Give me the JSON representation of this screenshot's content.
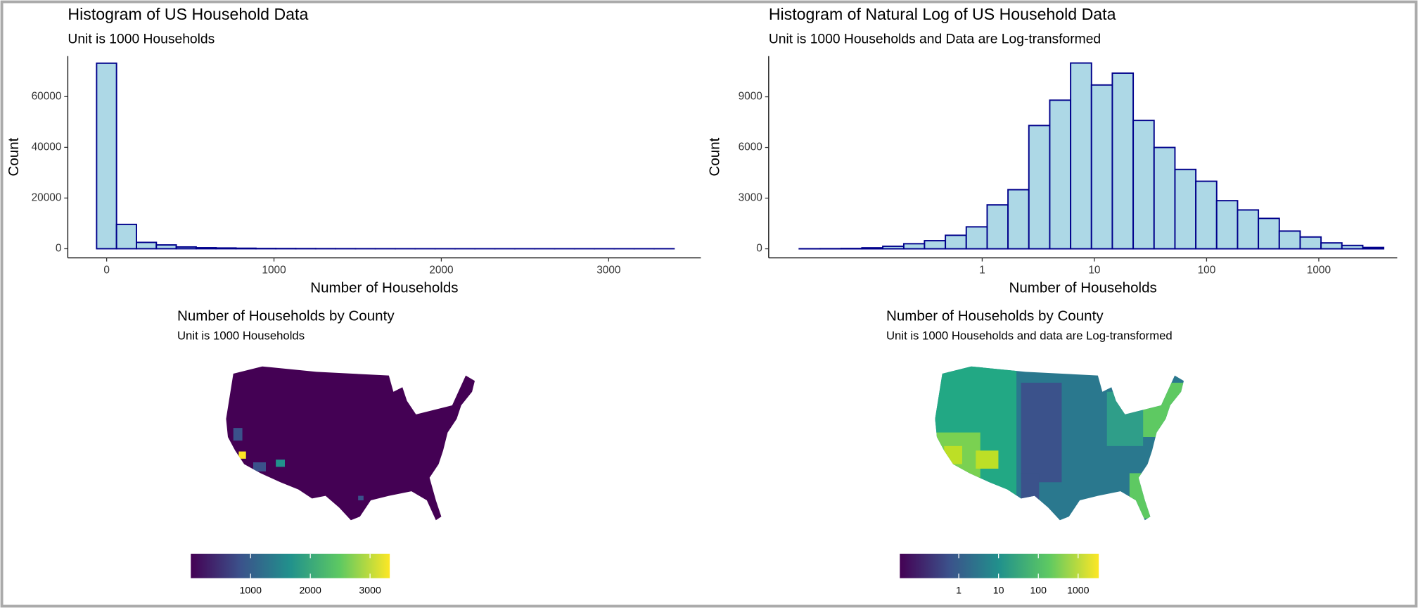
{
  "chart_data": [
    {
      "type": "histogram",
      "title": "Histogram of US Household Data",
      "subtitle": "Unit is 1000 Households",
      "xlabel": "Number of Households",
      "ylabel": "Count",
      "bins": [
        -60,
        59,
        178,
        297,
        416,
        535,
        654,
        773,
        892,
        1011,
        1130,
        1249,
        1368,
        1487,
        1606,
        1725,
        1844,
        1963,
        2082,
        2201,
        2320,
        2439,
        2558,
        2677,
        2796,
        2915,
        3034,
        3153,
        3272,
        3391
      ],
      "values": [
        73200,
        9600,
        2500,
        1500,
        700,
        400,
        300,
        200,
        100,
        80,
        60,
        40,
        30,
        20,
        15,
        10,
        8,
        5,
        5,
        3,
        3,
        2,
        2,
        1,
        1,
        1,
        1,
        1,
        1
      ],
      "color": "#add8e6",
      "edgecolor": "#00008b",
      "xlim": [
        -232,
        3551
      ],
      "xticks": [
        0,
        1000,
        2000,
        3000
      ],
      "ylim": [
        -3600,
        76000
      ],
      "yticks": [
        0,
        20000,
        40000,
        60000
      ],
      "log_x": false
    },
    {
      "type": "histogram",
      "title": "Histogram of Natural Log of US Household Data",
      "subtitle": "Unit is 1000 Households and Data are Log-transformed",
      "xlabel": "Number of Households",
      "ylabel": "Count",
      "bins": [
        0.0234,
        0.036,
        0.0552,
        0.0847,
        0.13,
        0.2,
        0.306,
        0.47,
        0.721,
        1.107,
        1.698,
        2.606,
        4.0,
        6.138,
        9.419,
        14.45,
        22.18,
        34.04,
        52.24,
        80.17,
        123,
        188.8,
        289.7,
        444.6,
        682.3,
        1047,
        1607,
        2466,
        3784
      ],
      "values": [
        5,
        10,
        20,
        60,
        150,
        300,
        480,
        800,
        1300,
        2600,
        3500,
        7300,
        8800,
        11000,
        9700,
        10400,
        7600,
        6000,
        4700,
        4000,
        2850,
        2300,
        1800,
        1050,
        700,
        350,
        200,
        80
      ],
      "color": "#add8e6",
      "edgecolor": "#00008b",
      "xlim": [
        0.0125,
        5000
      ],
      "xticks": [
        1,
        10,
        100,
        1000
      ],
      "ylim": [
        -536,
        11410
      ],
      "yticks": [
        0,
        3000,
        6000,
        9000
      ],
      "log_x": true
    },
    {
      "type": "choropleth",
      "title": "Number of Households by County",
      "subtitle": "Unit is 1000 Households",
      "colormap": "viridis",
      "colorbar": {
        "lim": [
          0,
          3330
        ],
        "ticks": [
          1000,
          2000,
          3000
        ],
        "log": false
      }
    },
    {
      "type": "choropleth",
      "title": "Number of Households by County",
      "subtitle": "Unit is 1000 Households and data are Log-transformed",
      "colormap": "viridis",
      "colorbar": {
        "lim": [
          0.033,
          3300
        ],
        "ticks": [
          1,
          10,
          100,
          1000
        ],
        "log": true
      }
    }
  ]
}
